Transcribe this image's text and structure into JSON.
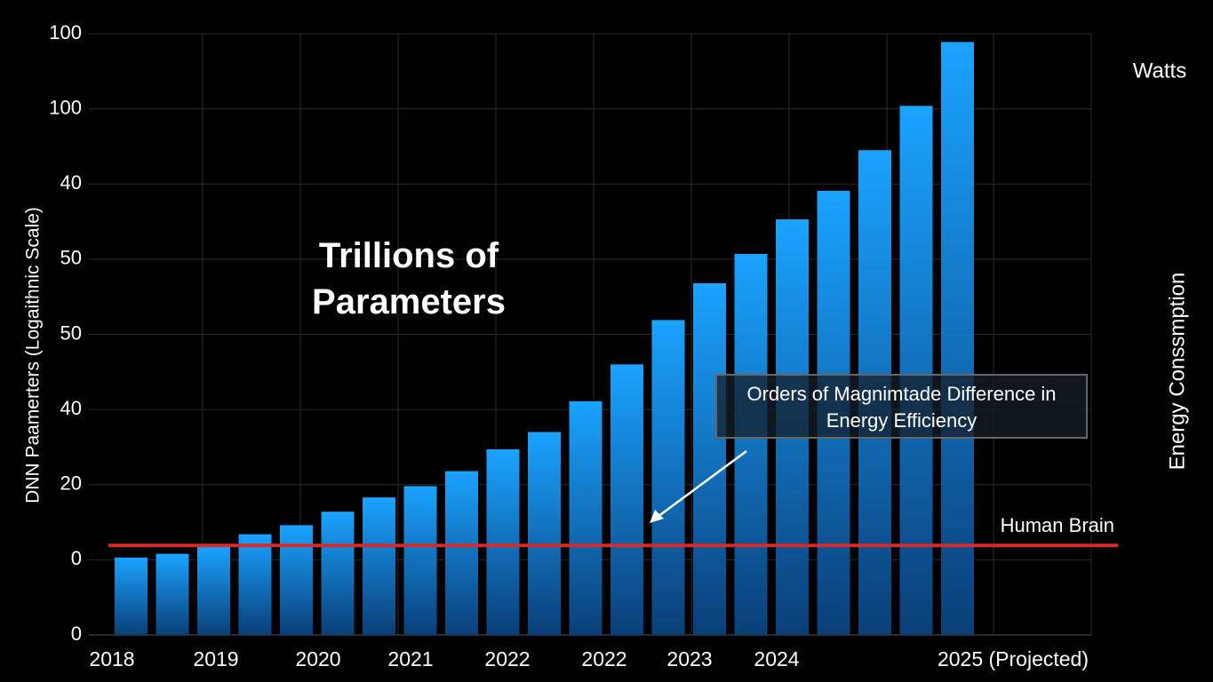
{
  "chart_data": {
    "type": "bar",
    "title": "Trillions of Parameters",
    "y_label": "DNN Paamerters (Logaithnic Scale)",
    "y2_label": "Energy Conssmption",
    "y2_unit": "Watts",
    "values": [
      1.03,
      1.08,
      1.17,
      1.34,
      1.46,
      1.64,
      1.83,
      1.98,
      2.18,
      2.47,
      2.7,
      3.11,
      3.6,
      4.19,
      4.68,
      5.07,
      5.53,
      5.91,
      6.45,
      7.04,
      7.89
    ],
    "x_labels": [
      "2018",
      "2019",
      "2020",
      "2021",
      "2022",
      "2022",
      "2023",
      "2024",
      "2025 (Projected)"
    ],
    "ylim": [
      0,
      8
    ],
    "yticks": [
      0,
      {
        "value": 1,
        "label": "0"
      },
      {
        "value": 2,
        "label": "20"
      },
      {
        "value": 3,
        "label": "40"
      },
      {
        "value": 4,
        "label": "50"
      },
      {
        "value": 5,
        "label": "50"
      },
      {
        "value": 6,
        "label": "40"
      },
      {
        "value": 7,
        "label": "100"
      },
      {
        "value": 8,
        "label": "100"
      }
    ],
    "grid": true,
    "color": "#1aa3ff",
    "reference_line": {
      "label": "Human Brain",
      "value": 1.19,
      "color": "#d42a2a"
    },
    "annotation": "Orders of Magnimtade Difference in Energy Efficiency"
  }
}
